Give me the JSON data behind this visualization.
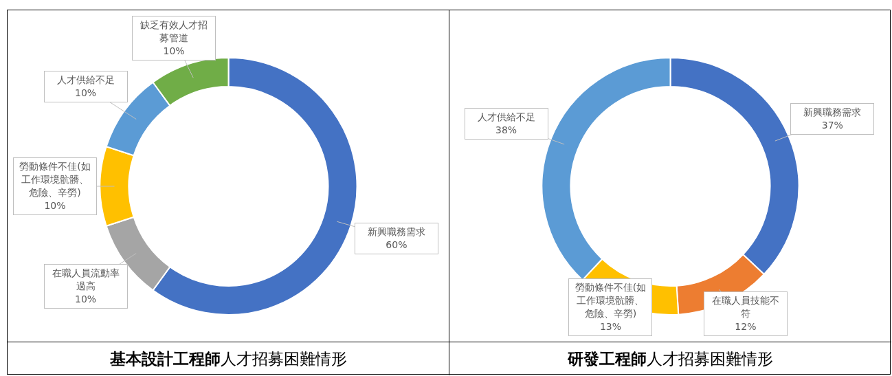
{
  "chart_data": [
    {
      "type": "donut",
      "title": "**基本設計工程師**人才招募困難情形",
      "categories": [
        "新興職務需求",
        "在職人員流動率過高",
        "勞動條件不佳(如工作環境骯髒、危險、辛勞)",
        "人才供給不足",
        "缺乏有效人才招募管道"
      ],
      "values": [
        60,
        10,
        10,
        10,
        10
      ],
      "value_labels": [
        "60%",
        "10%",
        "10%",
        "10%",
        "10%"
      ],
      "colors": [
        "#4472c4",
        "#a5a5a5",
        "#ffc000",
        "#5b9bd5",
        "#70ad47"
      ]
    },
    {
      "type": "donut",
      "title": "**研發工程師**人才招募困難情形",
      "categories": [
        "新興職務需求",
        "在職人員技能不符",
        "勞動條件不佳(如工作環境骯髒、危險、辛勞)",
        "人才供給不足"
      ],
      "values": [
        37,
        12,
        13,
        38
      ],
      "value_labels": [
        "37%",
        "12%",
        "13%",
        "38%"
      ],
      "colors": [
        "#4472c4",
        "#ed7d31",
        "#ffc000",
        "#5b9bd5"
      ]
    }
  ]
}
